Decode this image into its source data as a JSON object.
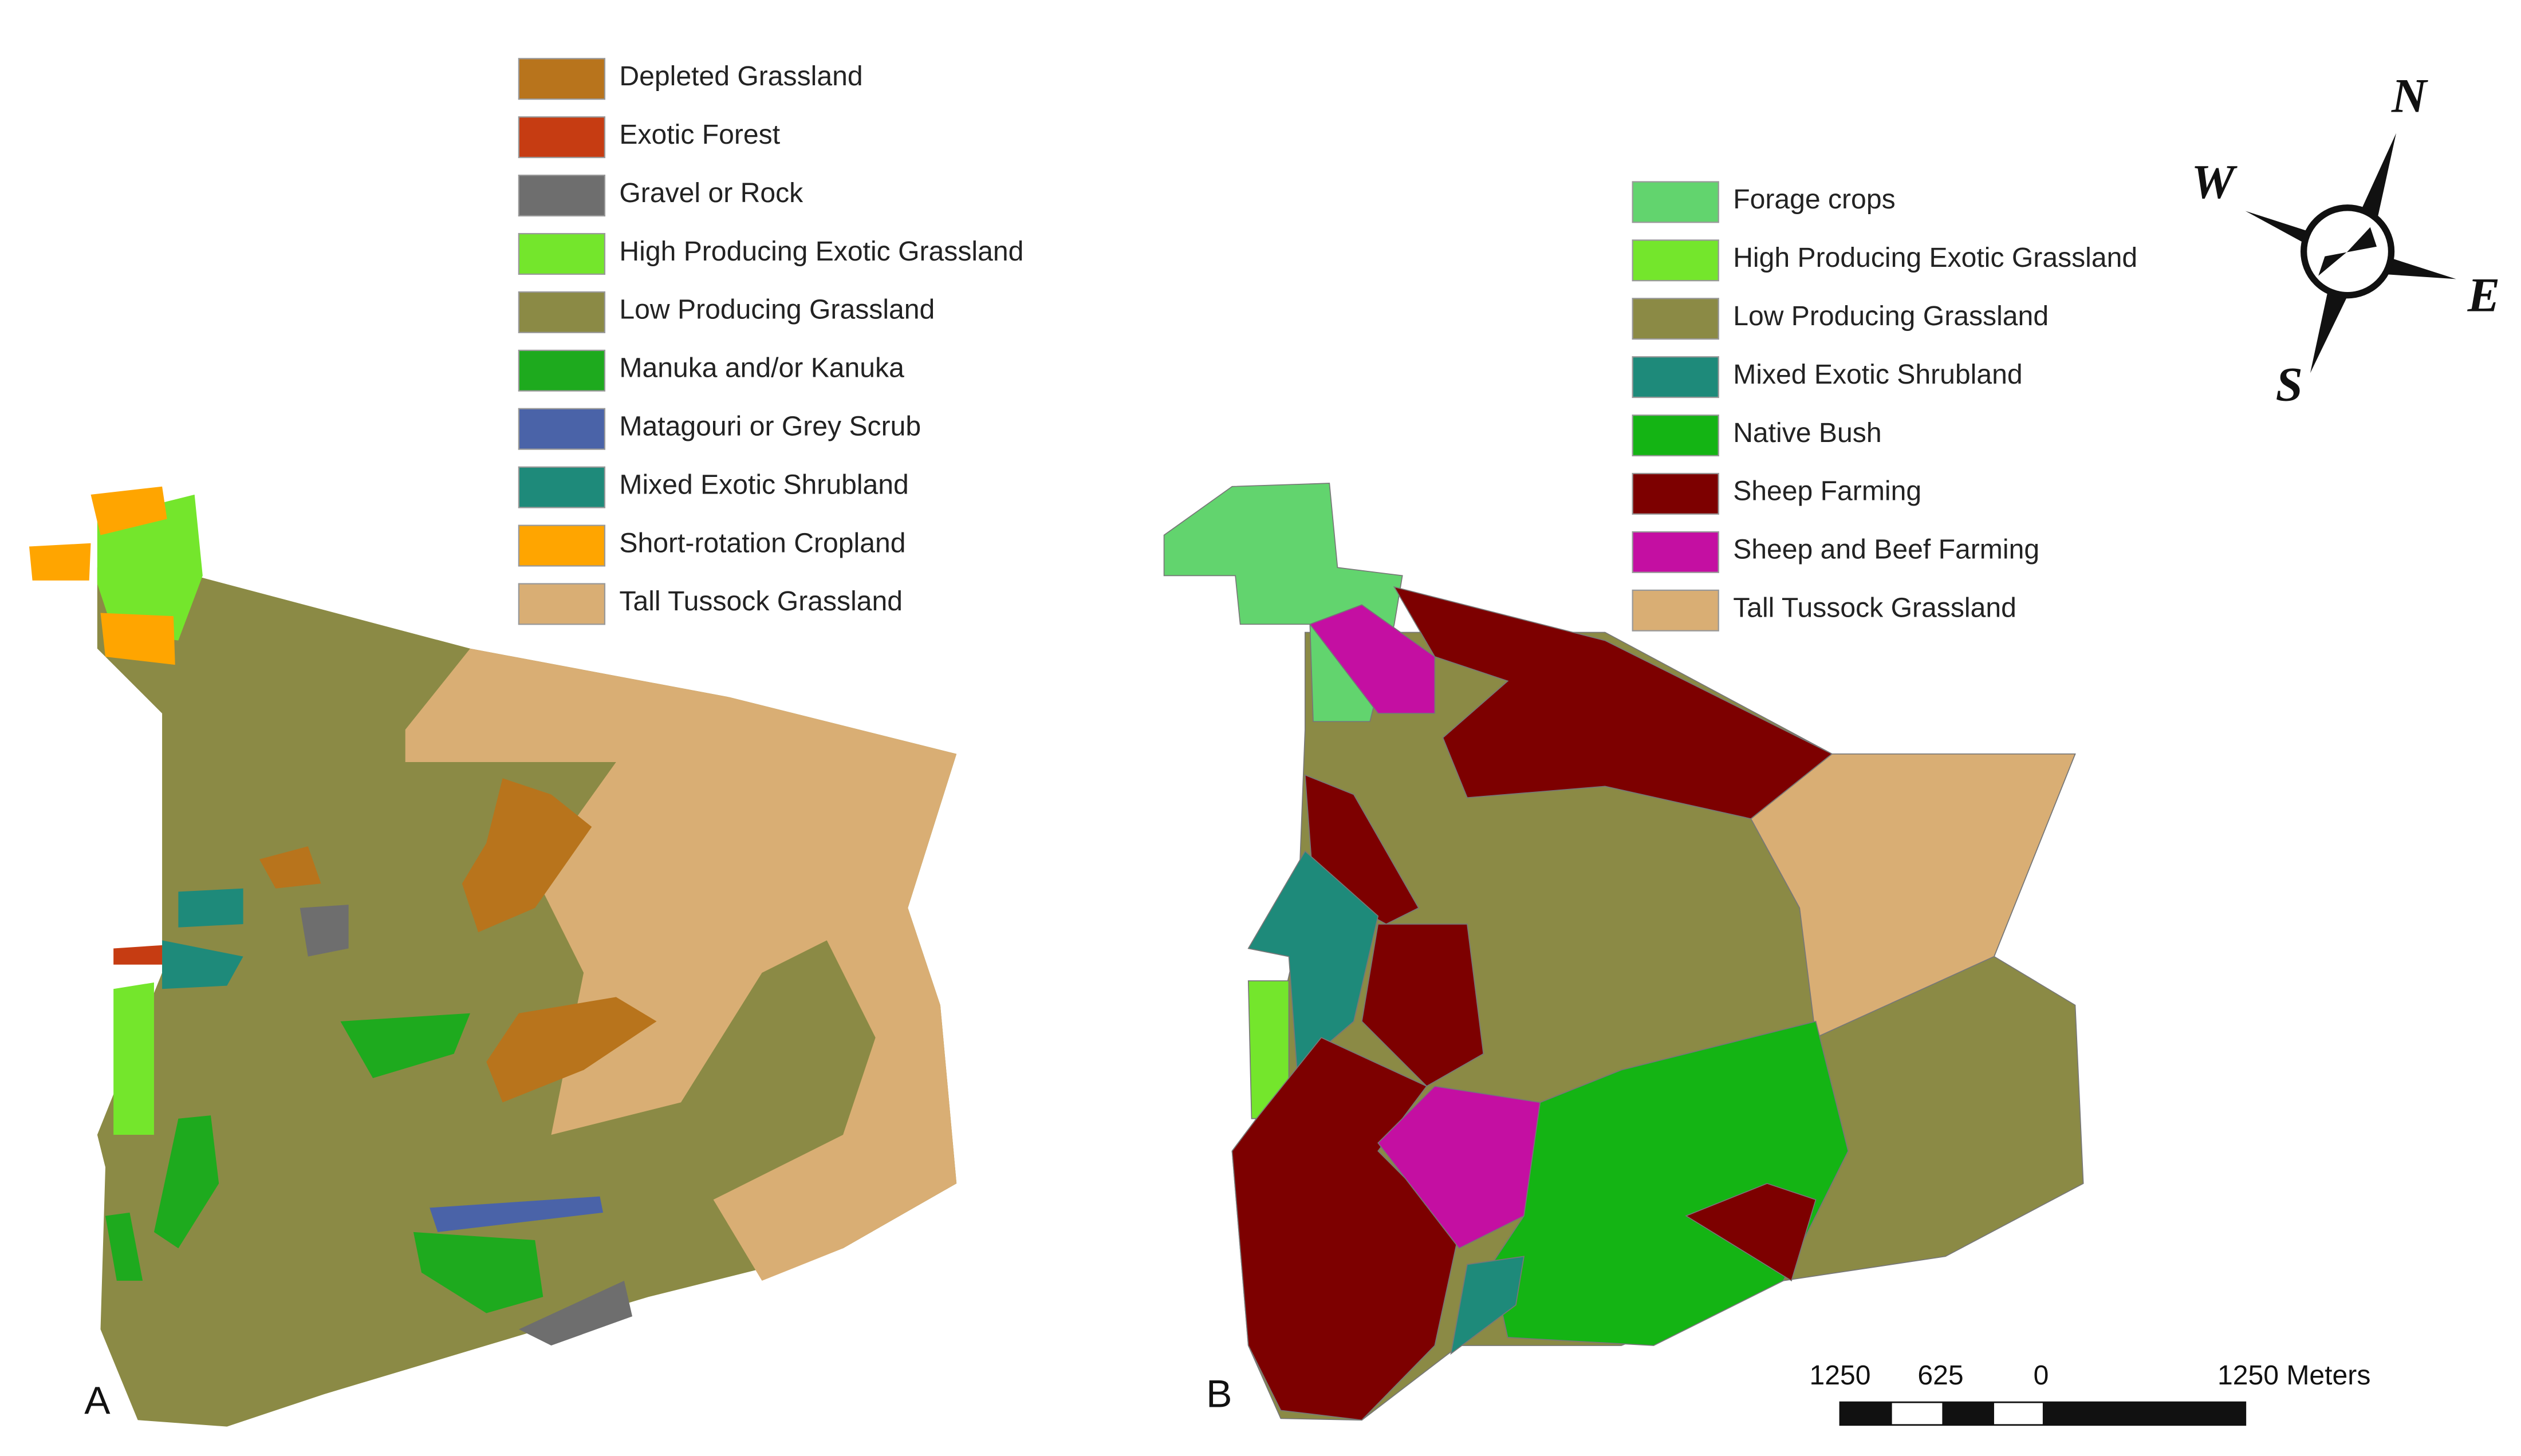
{
  "map_a": {
    "label": "A",
    "legend": [
      {
        "name": "Depleted Grassland",
        "color": "#b8741c"
      },
      {
        "name": "Exotic Forest",
        "color": "#c63c12"
      },
      {
        "name": "Gravel or Rock",
        "color": "#6e6e6e"
      },
      {
        "name": "High Producing Exotic Grassland",
        "color": "#74e62c"
      },
      {
        "name": "Low Producing Grassland",
        "color": "#8b8a45"
      },
      {
        "name": "Manuka and/or Kanuka",
        "color": "#1eaa1e"
      },
      {
        "name": "Matagouri or Grey Scrub",
        "color": "#4a63a8"
      },
      {
        "name": "Mixed Exotic Shrubland",
        "color": "#1e8a7a"
      },
      {
        "name": "Short-rotation Cropland",
        "color": "#ffa500"
      },
      {
        "name": "Tall Tussock Grassland",
        "color": "#d9ae74"
      }
    ]
  },
  "map_b": {
    "label": "B",
    "legend": [
      {
        "name": "Forage crops",
        "color": "#62d46e"
      },
      {
        "name": "High Producing Exotic Grassland",
        "color": "#74e62c"
      },
      {
        "name": "Low Producing Grassland",
        "color": "#8b8a45"
      },
      {
        "name": "Mixed Exotic Shrubland",
        "color": "#1e8a7a"
      },
      {
        "name": "Native Bush",
        "color": "#14b414"
      },
      {
        "name": "Sheep Farming",
        "color": "#7d0000"
      },
      {
        "name": "Sheep and Beef Farming",
        "color": "#c40fa2"
      },
      {
        "name": "Tall Tussock Grassland",
        "color": "#d9ae74"
      }
    ]
  },
  "compass": {
    "north": "N",
    "east": "E",
    "south": "S",
    "west": "W"
  },
  "scale_bar": {
    "labels": [
      "1250",
      "625",
      "0",
      "1250 Meters"
    ]
  }
}
